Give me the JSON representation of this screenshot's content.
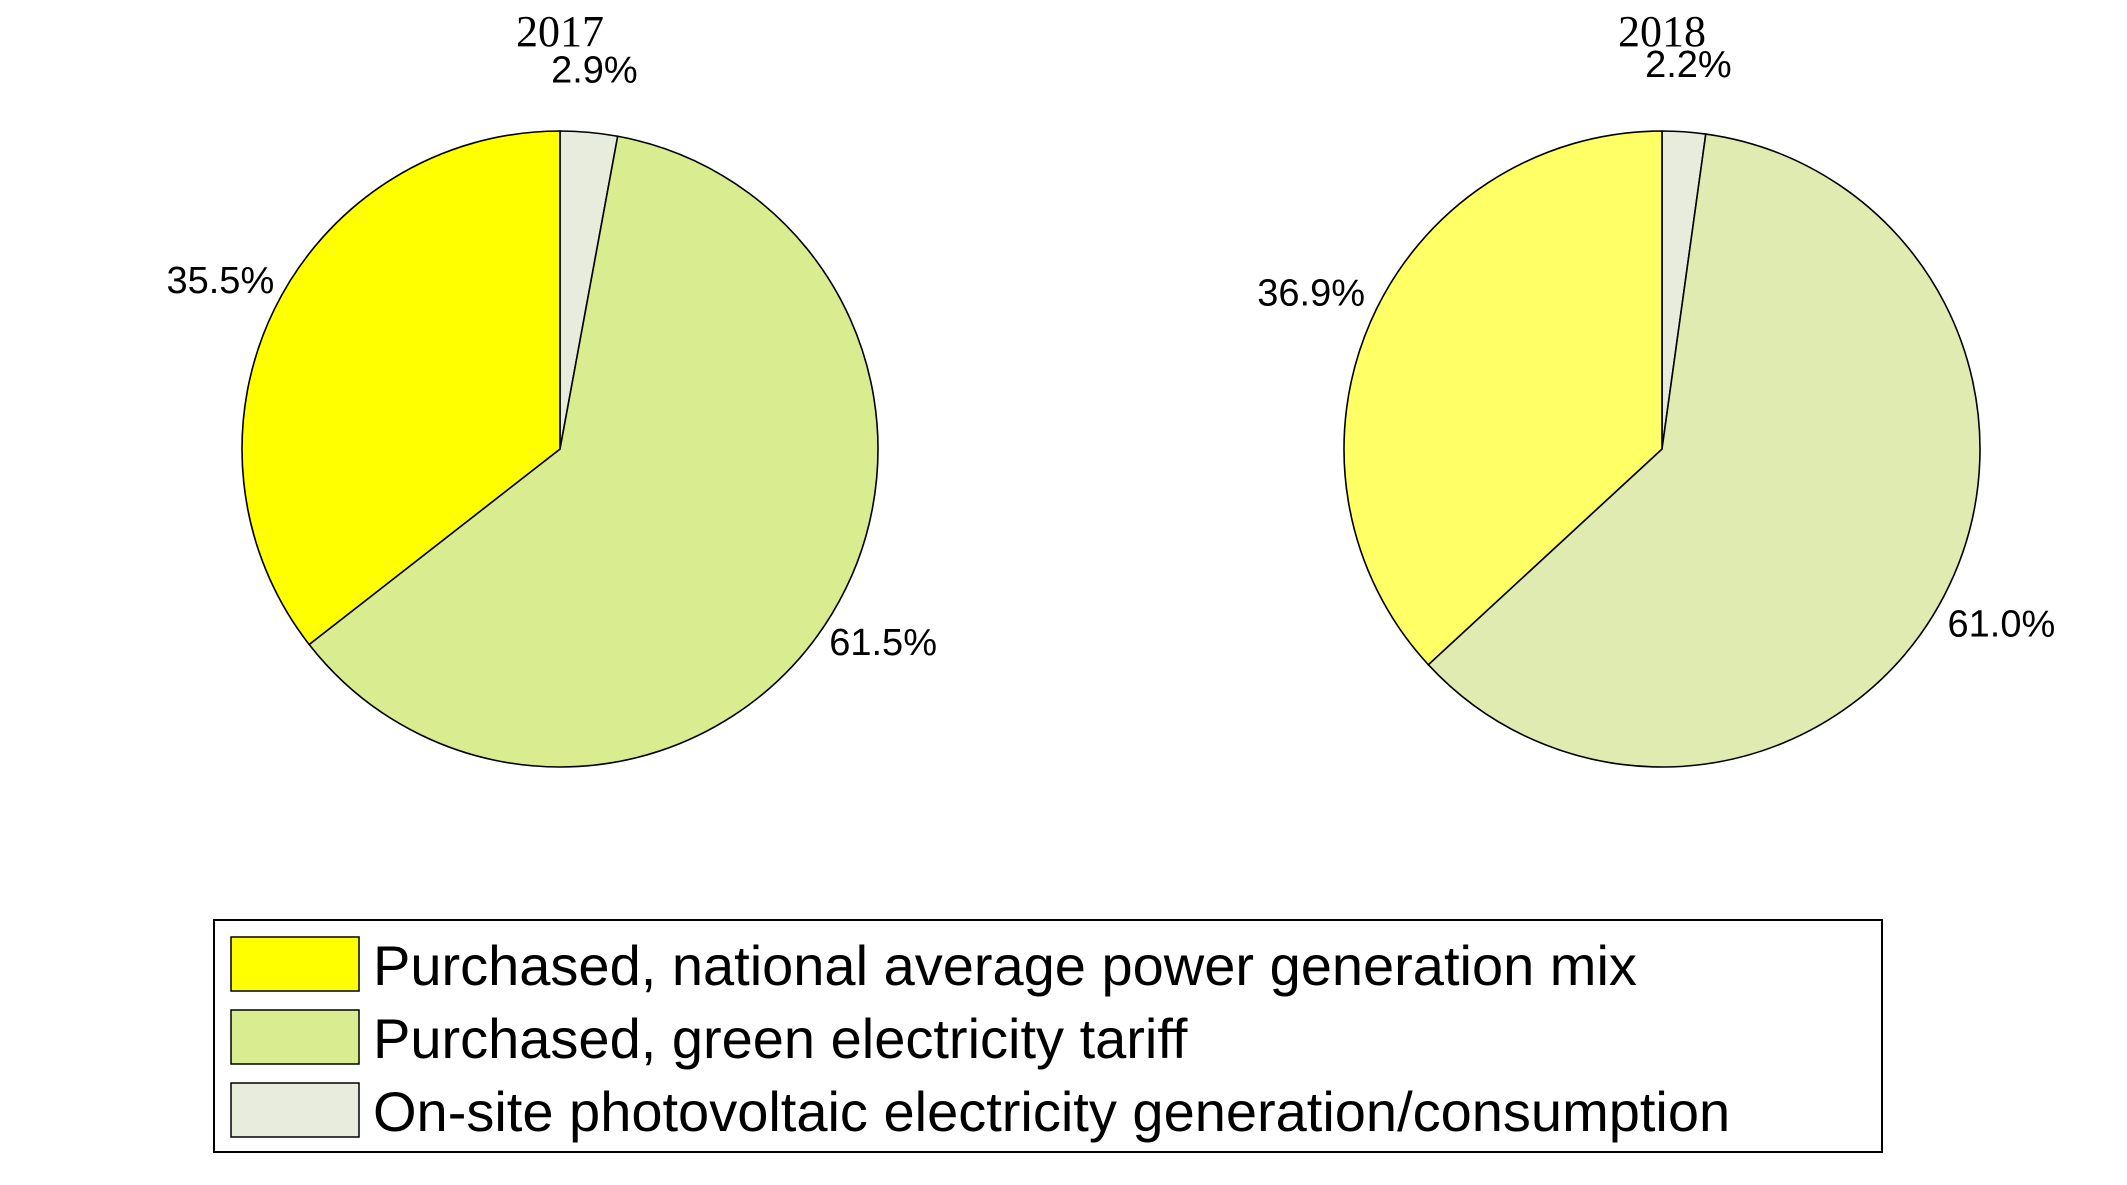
{
  "chart_data": [
    {
      "type": "pie",
      "title": "2017",
      "start_angle_deg": 0,
      "direction": "clockwise",
      "slices": [
        {
          "name": "On-site photovoltaic electricity generation/consumption",
          "value": 2.9,
          "label": "2.9%",
          "color": "#e8ecdc"
        },
        {
          "name": "Purchased, green electricity tariff",
          "value": 61.5,
          "label": "61.5%",
          "color": "#d9ec8f"
        },
        {
          "name": "Purchased, national average power generation mix",
          "value": 35.5,
          "label": "35.5%",
          "color": "#ffff00"
        }
      ]
    },
    {
      "type": "pie",
      "title": "2018",
      "start_angle_deg": 0,
      "direction": "clockwise",
      "slices": [
        {
          "name": "On-site photovoltaic electricity generation/consumption",
          "value": 2.2,
          "label": "2.2%",
          "color": "#e8ecdc"
        },
        {
          "name": "Purchased, green electricity tariff",
          "value": 61.0,
          "label": "61.0%",
          "color": "#dfebb0"
        },
        {
          "name": "Purchased, national average power generation mix",
          "value": 36.9,
          "label": "36.9%",
          "color": "#ffff66"
        }
      ]
    }
  ],
  "legend": {
    "placement": "bottom-center",
    "entries": [
      {
        "label": "Purchased, national average power generation mix",
        "color": "#ffff00"
      },
      {
        "label": "Purchased, green electricity tariff",
        "color": "#d9ec8f"
      },
      {
        "label": "On-site photovoltaic electricity generation/consumption",
        "color": "#e8ecdc"
      }
    ]
  }
}
